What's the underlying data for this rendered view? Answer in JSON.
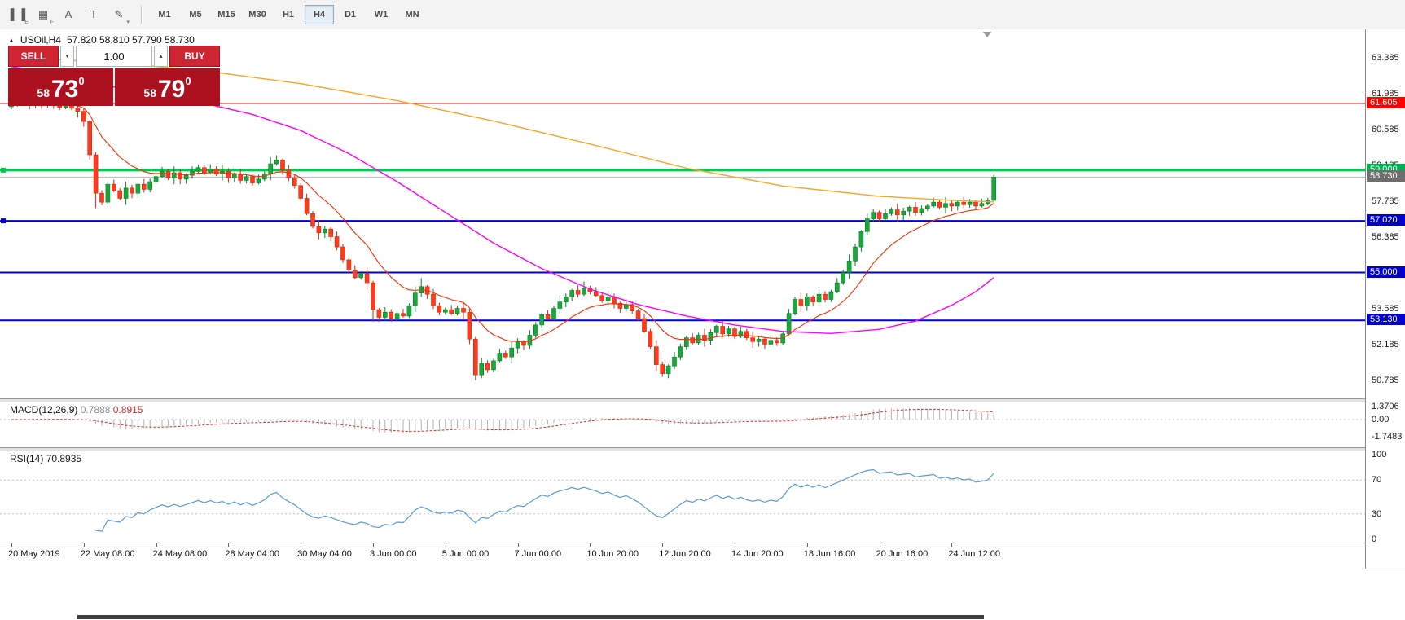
{
  "toolbar": {
    "icons": [
      {
        "name": "chart-candles-icon",
        "glyph": "▌▐",
        "sub": "E"
      },
      {
        "name": "indicators-grid-icon",
        "glyph": "▦",
        "sub": "F"
      },
      {
        "name": "text-label-icon",
        "glyph": "A",
        "sub": ""
      },
      {
        "name": "text-tool-icon",
        "glyph": "T",
        "sub": ""
      },
      {
        "name": "drawing-tools-icon",
        "glyph": "✎",
        "sub": "▾"
      }
    ],
    "timeframes": [
      "M1",
      "M5",
      "M15",
      "M30",
      "H1",
      "H4",
      "D1",
      "W1",
      "MN"
    ],
    "active_timeframe": "H4"
  },
  "trade_panel": {
    "sell_label": "SELL",
    "buy_label": "BUY",
    "volume": "1.00",
    "spin_down_glyph": "▼",
    "spin_up_glyph": "▲",
    "sell_price": {
      "small": "58",
      "big": "73",
      "sup": "0"
    },
    "buy_price": {
      "small": "58",
      "big": "79",
      "sup": "0"
    }
  },
  "chart": {
    "collapse_glyph": "▲",
    "header_symbol": "USOil,H4",
    "header_ohlc": "57.820 58.810 57.790 58.730"
  },
  "chart_data": {
    "type": "candlestick",
    "symbol": "USOil",
    "timeframe": "H4",
    "ohlc_header": {
      "open": "57.820",
      "high": "58.810",
      "low": "57.790",
      "close": "58.730"
    },
    "ylim": [
      50.05,
      64.44
    ],
    "price_axis_labels": [
      "63.385",
      "61.985",
      "60.585",
      "59.185",
      "57.785",
      "56.385",
      "54.985",
      "53.585",
      "52.185",
      "50.785"
    ],
    "hlines": [
      {
        "price": 61.605,
        "color": "#ff0000",
        "width": 1,
        "badge": "61.605",
        "badge_bg": "#ff0000",
        "marker": false
      },
      {
        "price": 59.0,
        "color": "#00c853",
        "width": 3,
        "badge": "59.000",
        "badge_bg": "#00b050",
        "marker": true
      },
      {
        "price": 58.73,
        "color": "#b8b8b8",
        "width": 1,
        "badge": "58.730",
        "badge_bg": "#6e6e6e",
        "marker": false
      },
      {
        "price": 57.02,
        "color": "#0000d8",
        "width": 2,
        "badge": "57.020",
        "badge_bg": "#0000cc",
        "marker": true
      },
      {
        "price": 55.0,
        "color": "#0000d8",
        "width": 2,
        "badge": "55.000",
        "badge_bg": "#0000cc",
        "marker": false
      },
      {
        "price": 53.13,
        "color": "#0000d8",
        "width": 2,
        "badge": "53.130",
        "badge_bg": "#0000cc",
        "marker": false
      }
    ],
    "candles": {
      "first_open": 61.48,
      "closes": [
        61.55,
        61.68,
        61.75,
        61.62,
        61.7,
        61.58,
        61.65,
        61.52,
        61.45,
        61.55,
        61.42,
        61.3,
        60.9,
        59.6,
        58.1,
        57.75,
        58.45,
        58.2,
        57.9,
        58.3,
        58.1,
        58.45,
        58.25,
        58.55,
        58.75,
        58.95,
        58.7,
        58.9,
        58.65,
        58.8,
        58.95,
        59.1,
        58.9,
        59.05,
        58.85,
        58.95,
        58.7,
        58.85,
        58.6,
        58.75,
        58.5,
        58.65,
        58.85,
        59.25,
        59.4,
        59.0,
        58.7,
        58.4,
        57.9,
        57.3,
        56.8,
        56.55,
        56.7,
        56.4,
        56.0,
        55.5,
        55.1,
        54.8,
        54.95,
        54.6,
        53.55,
        53.25,
        53.45,
        53.2,
        53.4,
        53.3,
        53.7,
        54.2,
        54.45,
        54.15,
        53.7,
        53.45,
        53.55,
        53.4,
        53.6,
        53.45,
        52.4,
        51.0,
        51.45,
        51.2,
        51.55,
        51.85,
        51.7,
        52.05,
        52.3,
        52.15,
        52.55,
        52.95,
        53.35,
        53.2,
        53.6,
        53.85,
        54.05,
        54.3,
        54.15,
        54.4,
        54.25,
        54.1,
        53.9,
        54.05,
        53.8,
        53.6,
        53.75,
        53.5,
        53.2,
        52.7,
        52.1,
        51.4,
        51.05,
        51.35,
        51.7,
        52.1,
        52.45,
        52.25,
        52.55,
        52.35,
        52.65,
        52.9,
        52.6,
        52.8,
        52.5,
        52.7,
        52.45,
        52.3,
        52.4,
        52.2,
        52.35,
        52.25,
        52.6,
        53.4,
        53.95,
        53.7,
        54.05,
        53.85,
        54.15,
        53.95,
        54.25,
        54.6,
        55.0,
        55.45,
        56.0,
        56.6,
        57.1,
        57.35,
        57.1,
        57.3,
        57.45,
        57.25,
        57.4,
        57.55,
        57.35,
        57.5,
        57.6,
        57.75,
        57.55,
        57.7,
        57.6,
        57.75,
        57.65,
        57.75,
        57.6,
        57.7,
        57.82,
        58.73
      ],
      "wick_pattern": [
        0.08,
        0.18,
        0.1,
        0.25,
        0.13,
        0.06,
        0.2,
        0.12
      ],
      "wick_overrides": {
        "14": [
          59.7,
          57.52
        ],
        "44": [
          59.58,
          59.18
        ],
        "60": [
          54.68,
          53.08
        ],
        "68": [
          54.78,
          54.05
        ],
        "77": [
          52.48,
          50.79
        ],
        "95": [
          54.65,
          54.08
        ],
        "108": [
          51.52,
          50.92
        ],
        "163": [
          58.81,
          57.79
        ]
      },
      "last_candle": {
        "open": 57.82,
        "high": 58.81,
        "low": 57.79,
        "close": 58.73
      }
    },
    "ma_lines": [
      {
        "name": "ma-slow-orange",
        "color": "#f5a623",
        "width": 1.4,
        "points": [
          [
            0,
            63.4
          ],
          [
            16,
            63.22
          ],
          [
            32,
            62.88
          ],
          [
            48,
            62.38
          ],
          [
            64,
            61.72
          ],
          [
            80,
            60.92
          ],
          [
            96,
            60.02
          ],
          [
            112,
            59.08
          ],
          [
            128,
            58.38
          ],
          [
            144,
            57.98
          ],
          [
            156,
            57.82
          ],
          [
            163,
            57.76
          ]
        ]
      },
      {
        "name": "ma-mid-magenta",
        "color": "#ff00ff",
        "width": 1.4,
        "points": [
          [
            0,
            63.05
          ],
          [
            10,
            62.6
          ],
          [
            20,
            62.1
          ],
          [
            30,
            61.72
          ],
          [
            40,
            61.18
          ],
          [
            48,
            60.55
          ],
          [
            56,
            59.65
          ],
          [
            64,
            58.55
          ],
          [
            72,
            57.35
          ],
          [
            80,
            56.15
          ],
          [
            88,
            55.15
          ],
          [
            96,
            54.35
          ],
          [
            104,
            53.75
          ],
          [
            112,
            53.3
          ],
          [
            120,
            52.95
          ],
          [
            128,
            52.7
          ],
          [
            136,
            52.62
          ],
          [
            144,
            52.78
          ],
          [
            150,
            53.1
          ],
          [
            156,
            53.72
          ],
          [
            160,
            54.25
          ],
          [
            163,
            54.8
          ]
        ]
      }
    ],
    "ema_fast": {
      "period": 13,
      "color": "#ff2a00",
      "width": 1.1
    },
    "time_labels": [
      {
        "i": 0,
        "t": "20 May 2019"
      },
      {
        "i": 12,
        "t": "22 May 08:00"
      },
      {
        "i": 24,
        "t": "24 May 08:00"
      },
      {
        "i": 36,
        "t": "28 May 04:00"
      },
      {
        "i": 48,
        "t": "30 May 04:00"
      },
      {
        "i": 60,
        "t": "3 Jun 00:00"
      },
      {
        "i": 72,
        "t": "5 Jun 00:00"
      },
      {
        "i": 84,
        "t": "7 Jun 00:00"
      },
      {
        "i": 96,
        "t": "10 Jun 20:00"
      },
      {
        "i": 108,
        "t": "12 Jun 20:00"
      },
      {
        "i": 120,
        "t": "14 Jun 20:00"
      },
      {
        "i": 132,
        "t": "18 Jun 16:00"
      },
      {
        "i": 144,
        "t": "20 Jun 16:00"
      },
      {
        "i": 156,
        "t": "24 Jun 12:00"
      }
    ],
    "macd": {
      "label": "MACD(12,26,9)",
      "main_value": "0.7888",
      "signal_value": "0.8915",
      "fast": 12,
      "slow": 26,
      "signal": 9,
      "scale": [
        "1.3706",
        "0.00",
        "-1.7483"
      ],
      "hist_color": "#b0b0b0",
      "signal_color": "#d23030"
    },
    "rsi": {
      "label": "RSI(14)",
      "value": "70.8935",
      "period": 14,
      "scale": [
        "100",
        "70",
        "30",
        "0"
      ],
      "levels": [
        70,
        30
      ],
      "line_color": "#5a9bd4"
    },
    "colors": {
      "candle_up": "#18a93c",
      "candle_up_stroke": "#0c7a28",
      "candle_down": "#ff3b1e",
      "candle_down_stroke": "#c22f12",
      "accent_red": "#d02433",
      "grid_silver": "#c0c0c0"
    }
  }
}
